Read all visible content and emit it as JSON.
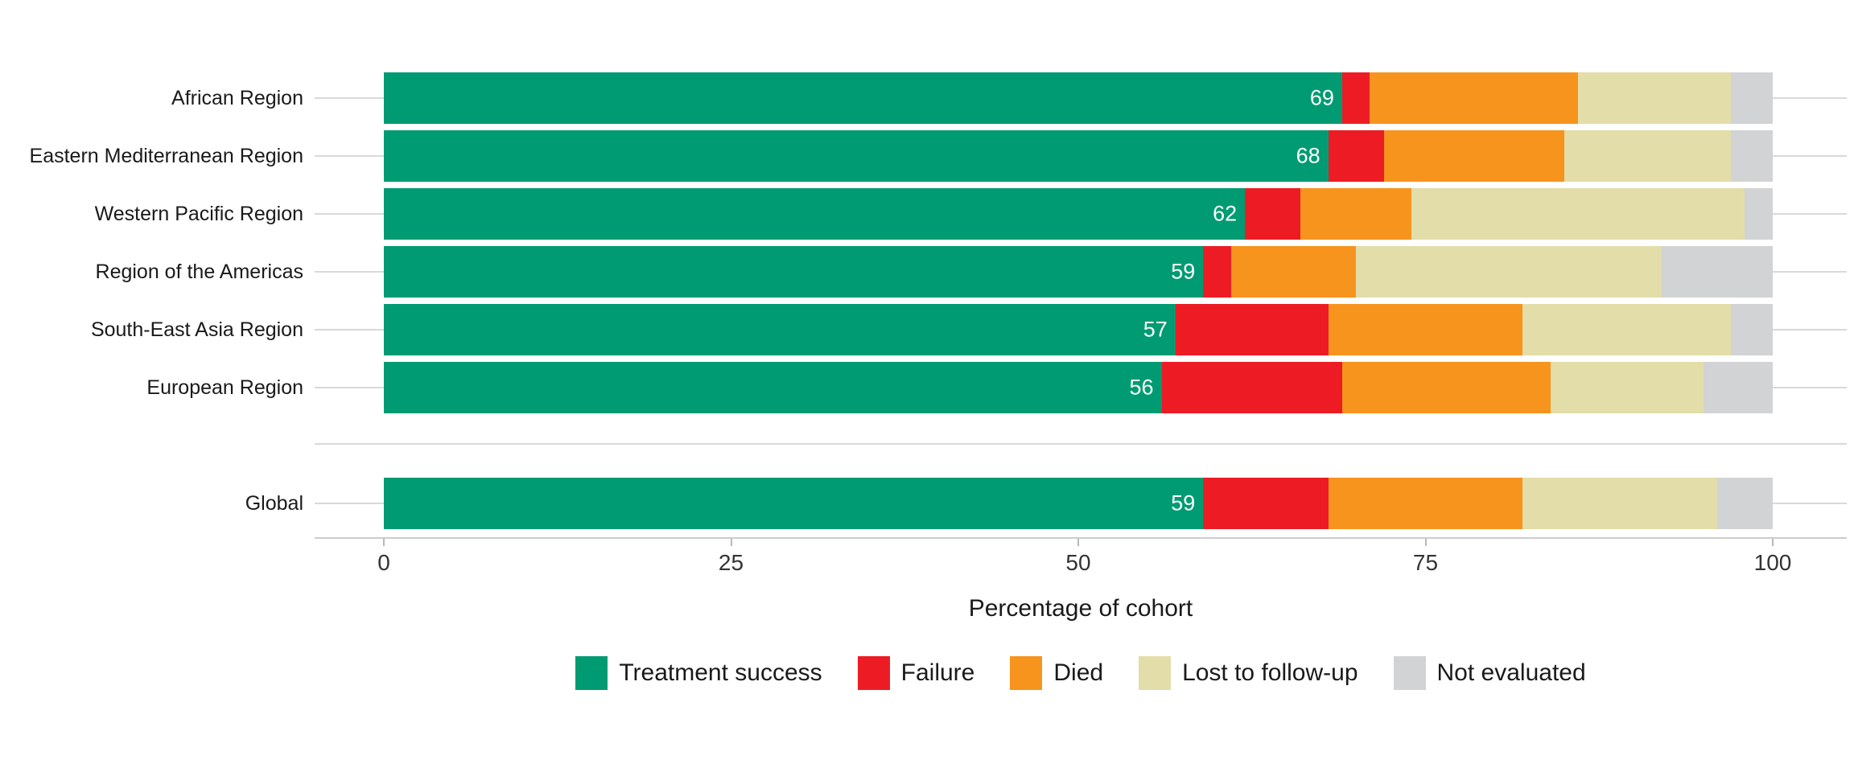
{
  "chart_data": {
    "type": "bar",
    "stacked": true,
    "orientation": "horizontal",
    "title": "",
    "xlabel": "Percentage of cohort",
    "ylabel": "",
    "xlim": [
      0,
      100
    ],
    "xticks": [
      0,
      25,
      50,
      75,
      100
    ],
    "grid": "horizontal category gridlines only",
    "legend_position": "bottom",
    "categories": [
      "African Region",
      "Eastern Mediterranean Region",
      "Western Pacific Region",
      "Region of the Americas",
      "South-East Asia Region",
      "European Region",
      "Global"
    ],
    "separator_after": "European Region",
    "series": [
      {
        "name": "Treatment success",
        "color": "#009b72",
        "values": [
          69,
          68,
          62,
          59,
          57,
          56,
          59
        ]
      },
      {
        "name": "Failure",
        "color": "#ed1c24",
        "values": [
          2,
          4,
          4,
          2,
          11,
          13,
          9
        ]
      },
      {
        "name": "Died",
        "color": "#f7941e",
        "values": [
          15,
          13,
          8,
          9,
          14,
          15,
          14
        ]
      },
      {
        "name": "Lost to follow-up",
        "color": "#e3dda9",
        "values": [
          11,
          12,
          24,
          22,
          15,
          11,
          14
        ]
      },
      {
        "name": "Not evaluated",
        "color": "#d1d3d4",
        "values": [
          3,
          3,
          2,
          8,
          3,
          5,
          4
        ]
      }
    ],
    "bar_value_labels": [
      "69",
      "68",
      "62",
      "59",
      "57",
      "56",
      "59"
    ],
    "bar_value_label_color": "#ffffff"
  }
}
